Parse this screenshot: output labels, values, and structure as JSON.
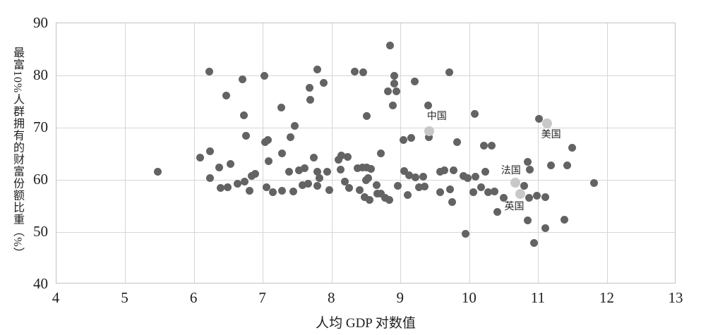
{
  "chart_data": {
    "type": "scatter",
    "title": "",
    "xlabel": "人均 GDP 对数值",
    "ylabel": "最富10%人群拥有的财富份额比重（%）",
    "xlim": [
      4,
      13
    ],
    "ylim": [
      40,
      90
    ],
    "x_ticks": [
      4,
      5,
      6,
      7,
      8,
      9,
      10,
      11,
      12,
      13
    ],
    "y_ticks": [
      40,
      50,
      60,
      70,
      80,
      90
    ],
    "grid": true,
    "legend": "none",
    "colors": {
      "dot": "#636363",
      "highlight_dot": "#c8c8c8",
      "gridline": "#d6d6d6",
      "border": "#c2c2c2",
      "text": "#1f1f1f"
    },
    "series": [
      {
        "name": "countries-unlabeled",
        "color": "#636363",
        "dot_size": 11,
        "points": [
          [
            5.47,
            61.5
          ],
          [
            6.09,
            64.2
          ],
          [
            6.22,
            80.7
          ],
          [
            6.23,
            65.5
          ],
          [
            6.23,
            60.4
          ],
          [
            6.36,
            62.3
          ],
          [
            6.38,
            58.5
          ],
          [
            6.47,
            76.1
          ],
          [
            6.49,
            58.6
          ],
          [
            6.53,
            63.0
          ],
          [
            6.63,
            59.3
          ],
          [
            6.7,
            79.2
          ],
          [
            6.72,
            72.3
          ],
          [
            6.73,
            59.7
          ],
          [
            6.75,
            68.5
          ],
          [
            6.8,
            57.9
          ],
          [
            6.83,
            60.7
          ],
          [
            6.89,
            61.2
          ],
          [
            7.02,
            79.9
          ],
          [
            7.03,
            67.2
          ],
          [
            7.05,
            58.6
          ],
          [
            7.07,
            67.6
          ],
          [
            7.08,
            63.6
          ],
          [
            7.14,
            57.7
          ],
          [
            7.26,
            73.8
          ],
          [
            7.27,
            65.1
          ],
          [
            7.27,
            57.9
          ],
          [
            7.38,
            61.5
          ],
          [
            7.4,
            68.2
          ],
          [
            7.44,
            57.8
          ],
          [
            7.46,
            70.3
          ],
          [
            7.52,
            61.8
          ],
          [
            7.57,
            59.0
          ],
          [
            7.6,
            62.2
          ],
          [
            7.65,
            59.2
          ],
          [
            7.67,
            77.7
          ],
          [
            7.69,
            75.4
          ],
          [
            7.74,
            64.3
          ],
          [
            7.79,
            81.1
          ],
          [
            7.79,
            61.5
          ],
          [
            7.79,
            58.8
          ],
          [
            7.82,
            60.3
          ],
          [
            7.88,
            78.6
          ],
          [
            7.93,
            61.5
          ],
          [
            7.96,
            58.1
          ],
          [
            8.09,
            63.9
          ],
          [
            8.13,
            61.9
          ],
          [
            8.14,
            64.6
          ],
          [
            8.19,
            59.6
          ],
          [
            8.23,
            64.4
          ],
          [
            8.25,
            58.4
          ],
          [
            8.33,
            80.7
          ],
          [
            8.37,
            62.2
          ],
          [
            8.4,
            58.1
          ],
          [
            8.44,
            62.4
          ],
          [
            8.45,
            80.6
          ],
          [
            8.47,
            56.7
          ],
          [
            8.49,
            59.9
          ],
          [
            8.5,
            72.2
          ],
          [
            8.5,
            62.4
          ],
          [
            8.53,
            60.4
          ],
          [
            8.55,
            56.2
          ],
          [
            8.57,
            62.1
          ],
          [
            8.65,
            59.0
          ],
          [
            8.66,
            57.3
          ],
          [
            8.71,
            65.1
          ],
          [
            8.71,
            57.4
          ],
          [
            8.77,
            56.6
          ],
          [
            8.81,
            76.9
          ],
          [
            8.83,
            56.2
          ],
          [
            8.84,
            85.7
          ],
          [
            8.88,
            74.3
          ],
          [
            8.9,
            78.4
          ],
          [
            8.91,
            79.9
          ],
          [
            8.94,
            76.9
          ],
          [
            8.96,
            58.8
          ],
          [
            9.04,
            67.6
          ],
          [
            9.05,
            61.7
          ],
          [
            9.1,
            57.1
          ],
          [
            9.12,
            60.9
          ],
          [
            9.15,
            68.1
          ],
          [
            9.2,
            78.9
          ],
          [
            9.21,
            60.5
          ],
          [
            9.26,
            58.6
          ],
          [
            9.33,
            60.6
          ],
          [
            9.35,
            58.7
          ],
          [
            9.4,
            74.3
          ],
          [
            9.41,
            68.2
          ],
          [
            9.57,
            61.6
          ],
          [
            9.57,
            57.7
          ],
          [
            9.63,
            61.8
          ],
          [
            9.7,
            80.6
          ],
          [
            9.71,
            58.2
          ],
          [
            9.75,
            55.7
          ],
          [
            9.77,
            61.8
          ],
          [
            9.82,
            67.2
          ],
          [
            9.91,
            60.8
          ],
          [
            9.94,
            49.7
          ],
          [
            9.97,
            60.4
          ],
          [
            10.05,
            57.6
          ],
          [
            10.07,
            72.6
          ],
          [
            10.08,
            60.6
          ],
          [
            10.17,
            58.6
          ],
          [
            10.21,
            66.5
          ],
          [
            10.23,
            61.6
          ],
          [
            10.27,
            57.7
          ],
          [
            10.32,
            66.5
          ],
          [
            10.36,
            57.8
          ],
          [
            10.4,
            53.9
          ],
          [
            10.49,
            56.5
          ],
          [
            10.79,
            58.9
          ],
          [
            10.84,
            63.4
          ],
          [
            10.84,
            52.2
          ],
          [
            10.86,
            56.6
          ],
          [
            10.87,
            61.9
          ],
          [
            10.93,
            47.9
          ],
          [
            10.98,
            57.0
          ],
          [
            11.01,
            71.7
          ],
          [
            11.1,
            56.7
          ],
          [
            11.1,
            50.7
          ],
          [
            11.18,
            62.8
          ],
          [
            11.38,
            52.4
          ],
          [
            11.42,
            62.8
          ],
          [
            11.49,
            66.1
          ],
          [
            11.81,
            59.4
          ]
        ]
      },
      {
        "name": "countries-labeled",
        "color": "#c8c8c8",
        "dot_size": 14,
        "points": [
          {
            "label": "中国",
            "x": 9.41,
            "y": 69.3,
            "label_dx": 11,
            "label_dy": -22
          },
          {
            "label": "美国",
            "x": 11.12,
            "y": 70.8,
            "label_dx": 6,
            "label_dy": 15
          },
          {
            "label": "法国",
            "x": 10.66,
            "y": 59.5,
            "label_dx": -6,
            "label_dy": -18
          },
          {
            "label": "英国",
            "x": 10.73,
            "y": 57.3,
            "label_dx": -8,
            "label_dy": 17
          }
        ]
      }
    ]
  }
}
